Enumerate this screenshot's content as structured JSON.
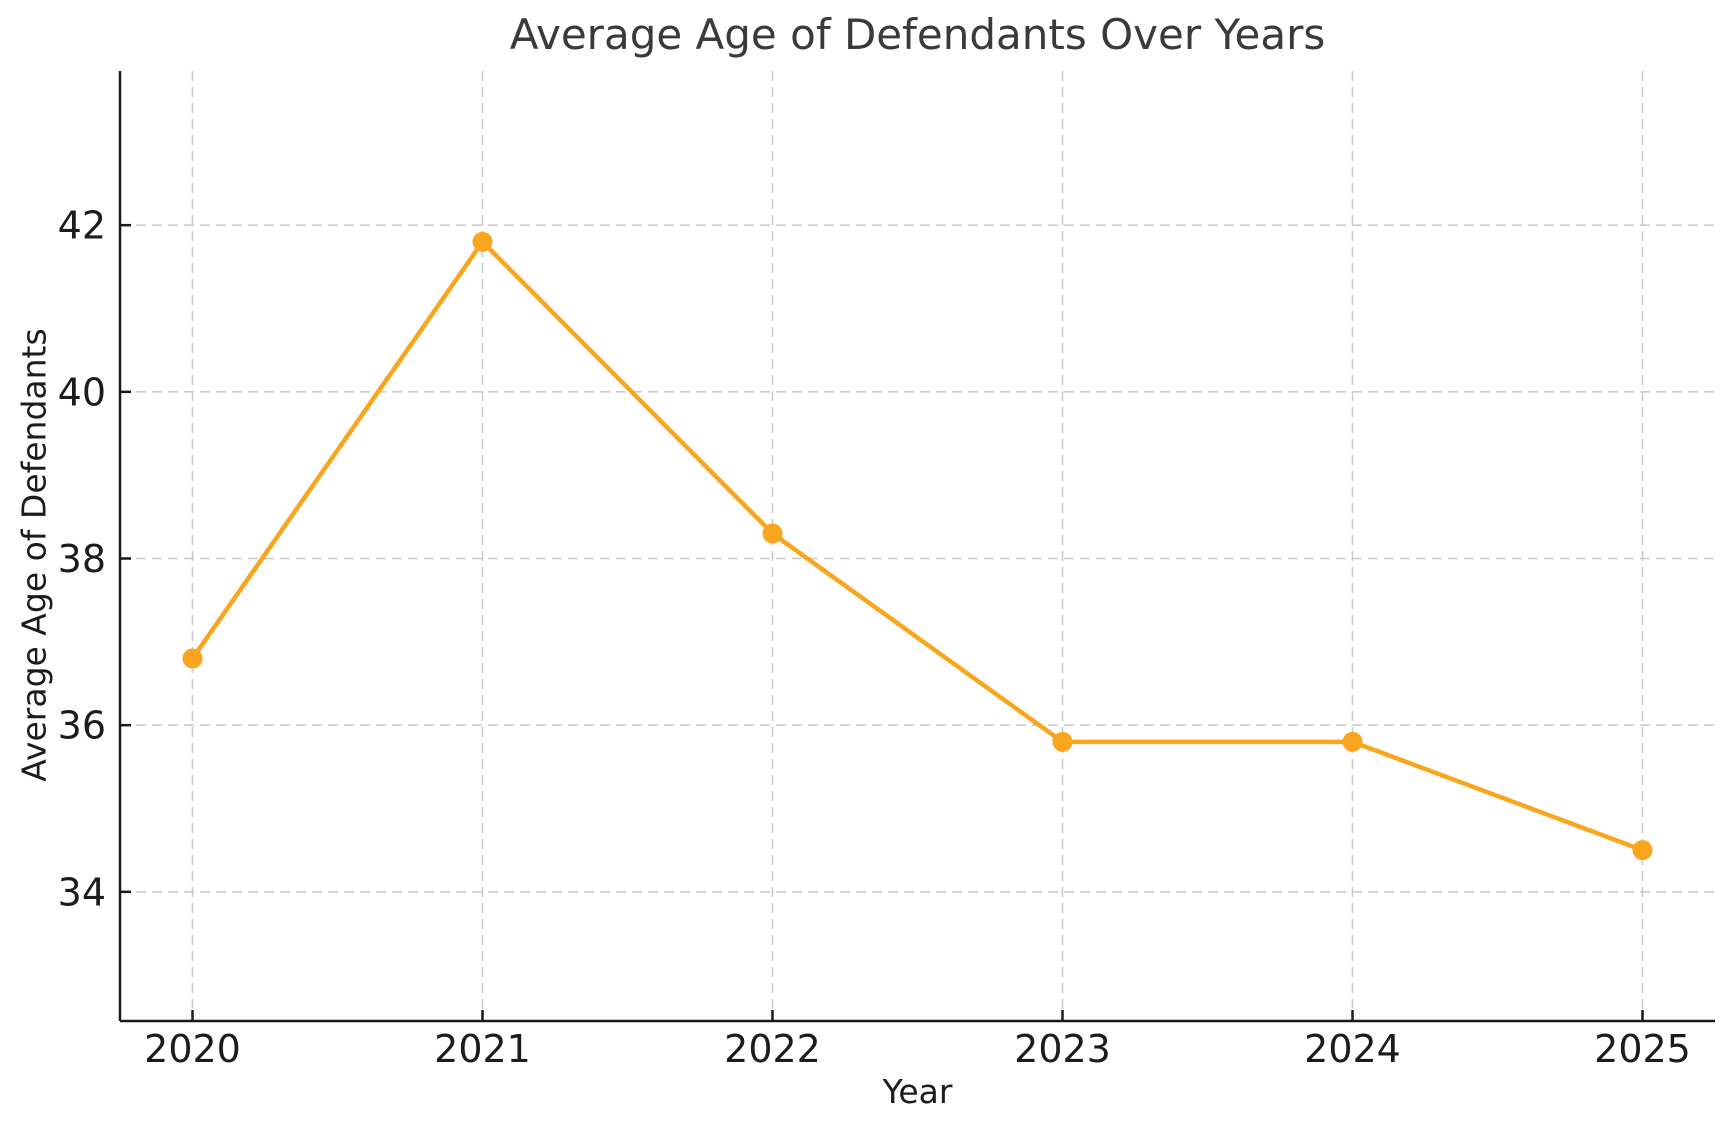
{
  "chart_data": {
    "type": "line",
    "title": "Average Age of Defendants Over Years",
    "xlabel": "Year",
    "ylabel": "Average Age of Defendants",
    "x": [
      2020,
      2021,
      2022,
      2023,
      2024,
      2025
    ],
    "series": [
      {
        "name": "Average Age of Defendants",
        "values": [
          36.8,
          41.8,
          38.3,
          35.8,
          35.8,
          34.5
        ]
      }
    ],
    "xticks": [
      "2020",
      "2021",
      "2022",
      "2023",
      "2024",
      "2025"
    ],
    "yticks": [
      34,
      36,
      38,
      40,
      42
    ],
    "xlim": [
      2019.75,
      2025.25
    ],
    "ylim": [
      32.45,
      43.85
    ],
    "grid": "on",
    "grid_style": "dashed",
    "legend_position": "none",
    "colors": {
      "line": "#FAA51E",
      "marker": "#FAA51E",
      "grid": "#cbcbcb",
      "spine": "#1a1a1a",
      "tick_text": "#1c1c1c",
      "title_text": "#3a3a3a",
      "background": "#ffffff"
    }
  }
}
